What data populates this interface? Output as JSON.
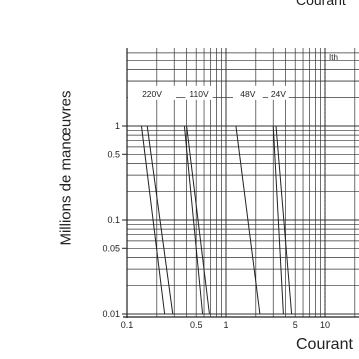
{
  "header": {
    "cut_label": "Courant"
  },
  "chart_data": {
    "type": "line",
    "title": "",
    "xlabel": "Courant",
    "ylabel": "Millions de manœuvres",
    "x_scale": "log",
    "y_scale": "log",
    "xlim": [
      0.1,
      20
    ],
    "ylim": [
      0.01,
      10
    ],
    "x_tick_labels": [
      {
        "value": 0.1,
        "label": "0.1"
      },
      {
        "value": 0.5,
        "label": "0.5"
      },
      {
        "value": 1,
        "label": "1"
      },
      {
        "value": 5,
        "label": "5"
      },
      {
        "value": 10,
        "label": "10"
      }
    ],
    "y_tick_labels": [
      {
        "value": 0.01,
        "label": "0.01"
      },
      {
        "value": 0.05,
        "label": "0.05"
      },
      {
        "value": 0.1,
        "label": "0.1"
      },
      {
        "value": 0.5,
        "label": "0.5"
      },
      {
        "value": 1,
        "label": "1"
      }
    ],
    "grid": true,
    "reference_lines": [
      {
        "x": 10,
        "label": "Ith",
        "style": "dotted"
      }
    ],
    "series": [
      {
        "name": "220V",
        "lines": [
          {
            "points": [
              [
                0.14,
                1.0
              ],
              [
                0.24,
                0.01
              ]
            ]
          },
          {
            "points": [
              [
                0.16,
                1.0
              ],
              [
                0.29,
                0.01
              ]
            ]
          }
        ]
      },
      {
        "name": "110V",
        "lines": [
          {
            "points": [
              [
                0.38,
                1.0
              ],
              [
                0.58,
                0.01
              ]
            ]
          },
          {
            "points": [
              [
                0.4,
                1.0
              ],
              [
                0.68,
                0.01
              ]
            ]
          }
        ]
      },
      {
        "name": "48V",
        "lines": [
          {
            "points": [
              [
                1.26,
                1.0
              ],
              [
                2.2,
                0.01
              ]
            ]
          }
        ]
      },
      {
        "name": "24V",
        "lines": [
          {
            "points": [
              [
                3.0,
                1.0
              ],
              [
                3.8,
                0.01
              ]
            ]
          },
          {
            "points": [
              [
                3.2,
                1.0
              ],
              [
                4.6,
                0.01
              ]
            ]
          }
        ]
      }
    ]
  }
}
